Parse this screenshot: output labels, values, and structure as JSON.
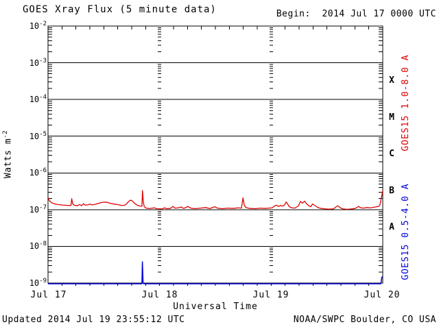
{
  "header": {
    "title": "GOES Xray Flux (5 minute data)",
    "begin_label": "Begin:  2014 Jul 17 0000 UTC"
  },
  "footer": {
    "updated": "Updated 2014 Jul 19 23:55:12 UTC",
    "credit": "NOAA/SWPC Boulder, CO USA"
  },
  "colors": {
    "long_channel": "#dd0000",
    "short_channel": "#0000dd",
    "axis": "#000000",
    "background": "#ffffff"
  },
  "chart_data": {
    "type": "line",
    "title": "GOES Xray Flux (5 minute data)",
    "x_axis": {
      "label": "Universal Time",
      "ticks": [
        "Jul 17",
        "Jul 18",
        "Jul 19",
        "Jul 20"
      ],
      "range_hours": [
        0,
        72
      ],
      "minor_tick_hours": 3,
      "day_gridlines_hours": [
        24,
        48
      ]
    },
    "y_axis": {
      "base": "10",
      "exponents": [
        "-2",
        "-3",
        "-4",
        "-5",
        "-6",
        "-7",
        "-8",
        "-9"
      ],
      "label_base": "Watts m",
      "label_exponent": "-2",
      "scale": "log",
      "ylim": [
        1e-09,
        0.01
      ]
    },
    "class_letters": [
      "X",
      "M",
      "C",
      "B",
      "A"
    ],
    "legend_position": "right",
    "series": [
      {
        "name": "GOES15 1.0-8.0 A",
        "color": "#dd0000",
        "points": [
          [
            0,
            2.1e-07
          ],
          [
            0.3,
            1.75e-07
          ],
          [
            0.75,
            1.55e-07
          ],
          [
            1.3,
            1.45e-07
          ],
          [
            2.1,
            1.38e-07
          ],
          [
            3.2,
            1.33e-07
          ],
          [
            4.4,
            1.3e-07
          ],
          [
            4.95,
            1.3e-07
          ],
          [
            5.1,
            2e-07
          ],
          [
            5.3,
            1.45e-07
          ],
          [
            5.6,
            1.32e-07
          ],
          [
            6.3,
            1.27e-07
          ],
          [
            6.8,
            1.38e-07
          ],
          [
            7.2,
            1.28e-07
          ],
          [
            7.65,
            1.45e-07
          ],
          [
            8.0,
            1.33e-07
          ],
          [
            8.6,
            1.35e-07
          ],
          [
            9.0,
            1.42e-07
          ],
          [
            9.4,
            1.35e-07
          ],
          [
            10.0,
            1.38e-07
          ],
          [
            10.6,
            1.45e-07
          ],
          [
            11.4,
            1.55e-07
          ],
          [
            12.1,
            1.6e-07
          ],
          [
            12.8,
            1.58e-07
          ],
          [
            13.4,
            1.48e-07
          ],
          [
            14.2,
            1.42e-07
          ],
          [
            14.9,
            1.38e-07
          ],
          [
            15.6,
            1.32e-07
          ],
          [
            16.2,
            1.3e-07
          ],
          [
            16.7,
            1.35e-07
          ],
          [
            17.1,
            1.55e-07
          ],
          [
            17.6,
            1.78e-07
          ],
          [
            17.9,
            1.8e-07
          ],
          [
            18.3,
            1.65e-07
          ],
          [
            18.7,
            1.45e-07
          ],
          [
            19.2,
            1.32e-07
          ],
          [
            19.8,
            1.25e-07
          ],
          [
            20.2,
            1.24e-07
          ],
          [
            20.32,
            3.3e-07
          ],
          [
            20.5,
            1.6e-07
          ],
          [
            20.7,
            1.2e-07
          ],
          [
            21.1,
            1.1e-07
          ],
          [
            21.8,
            1.07e-07
          ],
          [
            22.9,
            1.12e-07
          ],
          [
            23.3,
            1.06e-07
          ],
          [
            24.5,
            1.05e-07
          ],
          [
            25.1,
            1.12e-07
          ],
          [
            25.5,
            1.06e-07
          ],
          [
            26.3,
            1.08e-07
          ],
          [
            26.9,
            1.22e-07
          ],
          [
            27.3,
            1.1e-07
          ],
          [
            28.0,
            1.12e-07
          ],
          [
            28.6,
            1.18e-07
          ],
          [
            29.2,
            1.08e-07
          ],
          [
            30.1,
            1.22e-07
          ],
          [
            30.7,
            1.1e-07
          ],
          [
            31.6,
            1.06e-07
          ],
          [
            32.8,
            1.1e-07
          ],
          [
            33.9,
            1.14e-07
          ],
          [
            34.8,
            1.07e-07
          ],
          [
            35.9,
            1.2e-07
          ],
          [
            36.4,
            1.1e-07
          ],
          [
            37.5,
            1.06e-07
          ],
          [
            38.7,
            1.1e-07
          ],
          [
            39.8,
            1.08e-07
          ],
          [
            40.9,
            1.12e-07
          ],
          [
            41.6,
            1.1e-07
          ],
          [
            41.95,
            2.1e-07
          ],
          [
            42.2,
            1.35e-07
          ],
          [
            42.5,
            1.15e-07
          ],
          [
            43.4,
            1.08e-07
          ],
          [
            44.6,
            1.06e-07
          ],
          [
            45.7,
            1.1e-07
          ],
          [
            46.6,
            1.08e-07
          ],
          [
            47.5,
            1.1e-07
          ],
          [
            48.2,
            1.12e-07
          ],
          [
            48.7,
            1.25e-07
          ],
          [
            49.1,
            1.32e-07
          ],
          [
            49.6,
            1.22e-07
          ],
          [
            50.0,
            1.3e-07
          ],
          [
            50.5,
            1.25e-07
          ],
          [
            50.9,
            1.35e-07
          ],
          [
            51.2,
            1.62e-07
          ],
          [
            51.5,
            1.45e-07
          ],
          [
            51.9,
            1.2e-07
          ],
          [
            52.5,
            1.12e-07
          ],
          [
            53.1,
            1.1e-07
          ],
          [
            53.9,
            1.28e-07
          ],
          [
            54.3,
            1.68e-07
          ],
          [
            54.7,
            1.5e-07
          ],
          [
            55.2,
            1.7e-07
          ],
          [
            55.6,
            1.45e-07
          ],
          [
            56.1,
            1.28e-07
          ],
          [
            56.5,
            1.2e-07
          ],
          [
            56.9,
            1.42e-07
          ],
          [
            57.4,
            1.3e-07
          ],
          [
            58.0,
            1.15e-07
          ],
          [
            58.7,
            1.08e-07
          ],
          [
            59.6,
            1.05e-07
          ],
          [
            60.5,
            1.03e-07
          ],
          [
            61.4,
            1.05e-07
          ],
          [
            62.3,
            1.28e-07
          ],
          [
            62.9,
            1.12e-07
          ],
          [
            63.4,
            1.05e-07
          ],
          [
            64.3,
            1.02e-07
          ],
          [
            65.2,
            1.04e-07
          ],
          [
            66.1,
            1.08e-07
          ],
          [
            66.8,
            1.22e-07
          ],
          [
            67.3,
            1.12e-07
          ],
          [
            67.9,
            1.1e-07
          ],
          [
            68.6,
            1.14e-07
          ],
          [
            69.3,
            1.12e-07
          ],
          [
            70.1,
            1.16e-07
          ],
          [
            70.7,
            1.2e-07
          ],
          [
            71.1,
            1.22e-07
          ],
          [
            71.4,
            1.35e-07
          ],
          [
            71.6,
            1.8e-07
          ],
          [
            71.85,
            2.6e-07
          ],
          [
            72,
            3.3e-07
          ]
        ]
      },
      {
        "name": "GOES15 0.5-4.0 A",
        "color": "#0000dd",
        "points": [
          [
            0,
            9.6e-10
          ],
          [
            5,
            9.6e-10
          ],
          [
            10,
            9.6e-10
          ],
          [
            15,
            9.6e-10
          ],
          [
            20.2,
            9.6e-10
          ],
          [
            20.3,
            3.8e-09
          ],
          [
            20.45,
            1e-09
          ],
          [
            20.6,
            9.6e-10
          ],
          [
            25,
            9.6e-10
          ],
          [
            30,
            9.6e-10
          ],
          [
            35,
            9.6e-10
          ],
          [
            40,
            9.6e-10
          ],
          [
            45,
            9.6e-10
          ],
          [
            50,
            9.6e-10
          ],
          [
            55,
            9.6e-10
          ],
          [
            60,
            9.6e-10
          ],
          [
            65,
            9.6e-10
          ],
          [
            70,
            9.6e-10
          ],
          [
            71.6,
            9.6e-10
          ],
          [
            71.8,
            1.45e-09
          ],
          [
            72,
            1.5e-09
          ]
        ]
      }
    ]
  }
}
